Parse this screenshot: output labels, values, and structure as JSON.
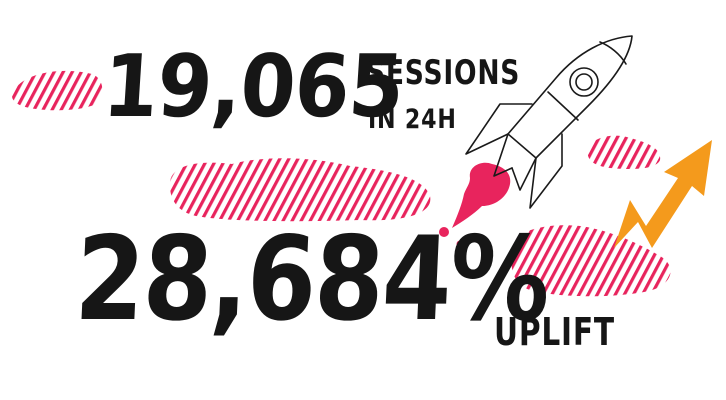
{
  "stats": [
    {
      "value": "19,065",
      "unit_line1": "SESSIONS",
      "unit_line2": "IN 24H"
    },
    {
      "value": "28,684%",
      "unit_line1": "UPLIFT"
    }
  ],
  "illustrations": {
    "rocket": "rocket-icon",
    "arrow": "trend-up-arrow-icon"
  },
  "colors": {
    "text": "#161616",
    "stripe_cloud": "#e8245d",
    "rocket_flame": "#e8245d",
    "arrow": "#f49a1c"
  }
}
